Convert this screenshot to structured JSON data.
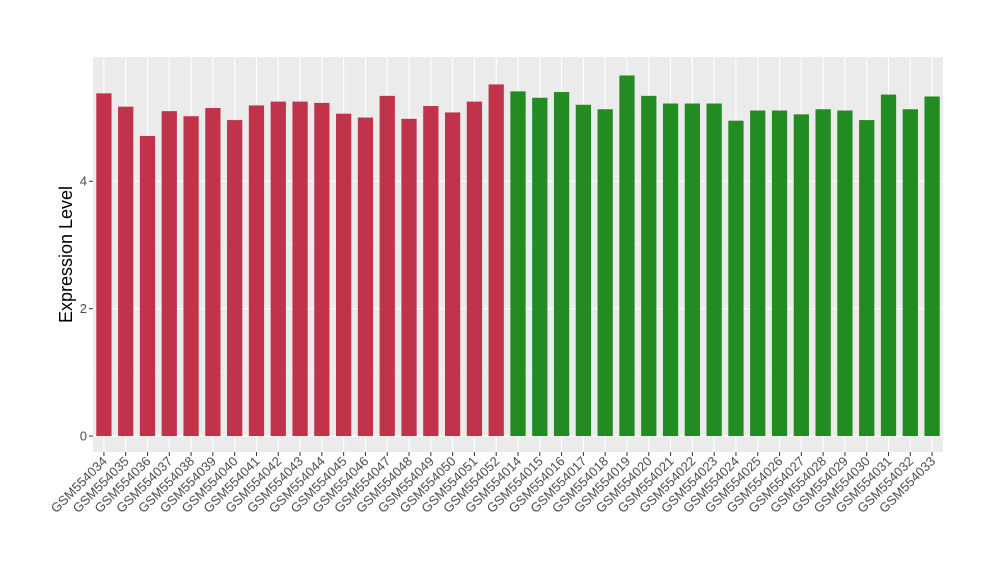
{
  "chart_data": {
    "type": "bar",
    "title": "",
    "xlabel": "",
    "ylabel": "Expression Level",
    "ylim": [
      -0.25,
      5.95
    ],
    "yticks": [
      0,
      2,
      4
    ],
    "grid": true,
    "panel_background": "#ebebeb",
    "categories": [
      "GSM554034",
      "GSM554035",
      "GSM554036",
      "GSM554037",
      "GSM554038",
      "GSM554039",
      "GSM554040",
      "GSM554041",
      "GSM554042",
      "GSM554043",
      "GSM554044",
      "GSM554045",
      "GSM554046",
      "GSM554047",
      "GSM554048",
      "GSM554049",
      "GSM554050",
      "GSM554051",
      "GSM554052",
      "GSM554014",
      "GSM554015",
      "GSM554016",
      "GSM554017",
      "GSM554018",
      "GSM554019",
      "GSM554020",
      "GSM554021",
      "GSM554022",
      "GSM554023",
      "GSM554024",
      "GSM554025",
      "GSM554026",
      "GSM554027",
      "GSM554028",
      "GSM554029",
      "GSM554030",
      "GSM554031",
      "GSM554032",
      "GSM554033"
    ],
    "values": [
      5.38,
      5.17,
      4.71,
      5.1,
      5.02,
      5.15,
      4.96,
      5.19,
      5.25,
      5.25,
      5.23,
      5.06,
      5.0,
      5.34,
      4.98,
      5.18,
      5.08,
      5.25,
      5.52,
      5.41,
      5.31,
      5.4,
      5.2,
      5.13,
      5.66,
      5.34,
      5.22,
      5.22,
      5.22,
      4.95,
      5.11,
      5.11,
      5.05,
      5.13,
      5.11,
      4.96,
      5.36,
      5.13,
      5.33
    ],
    "groups": [
      {
        "color": "#c0334a",
        "count": 19
      },
      {
        "color": "#228b22",
        "count": 20
      }
    ]
  }
}
